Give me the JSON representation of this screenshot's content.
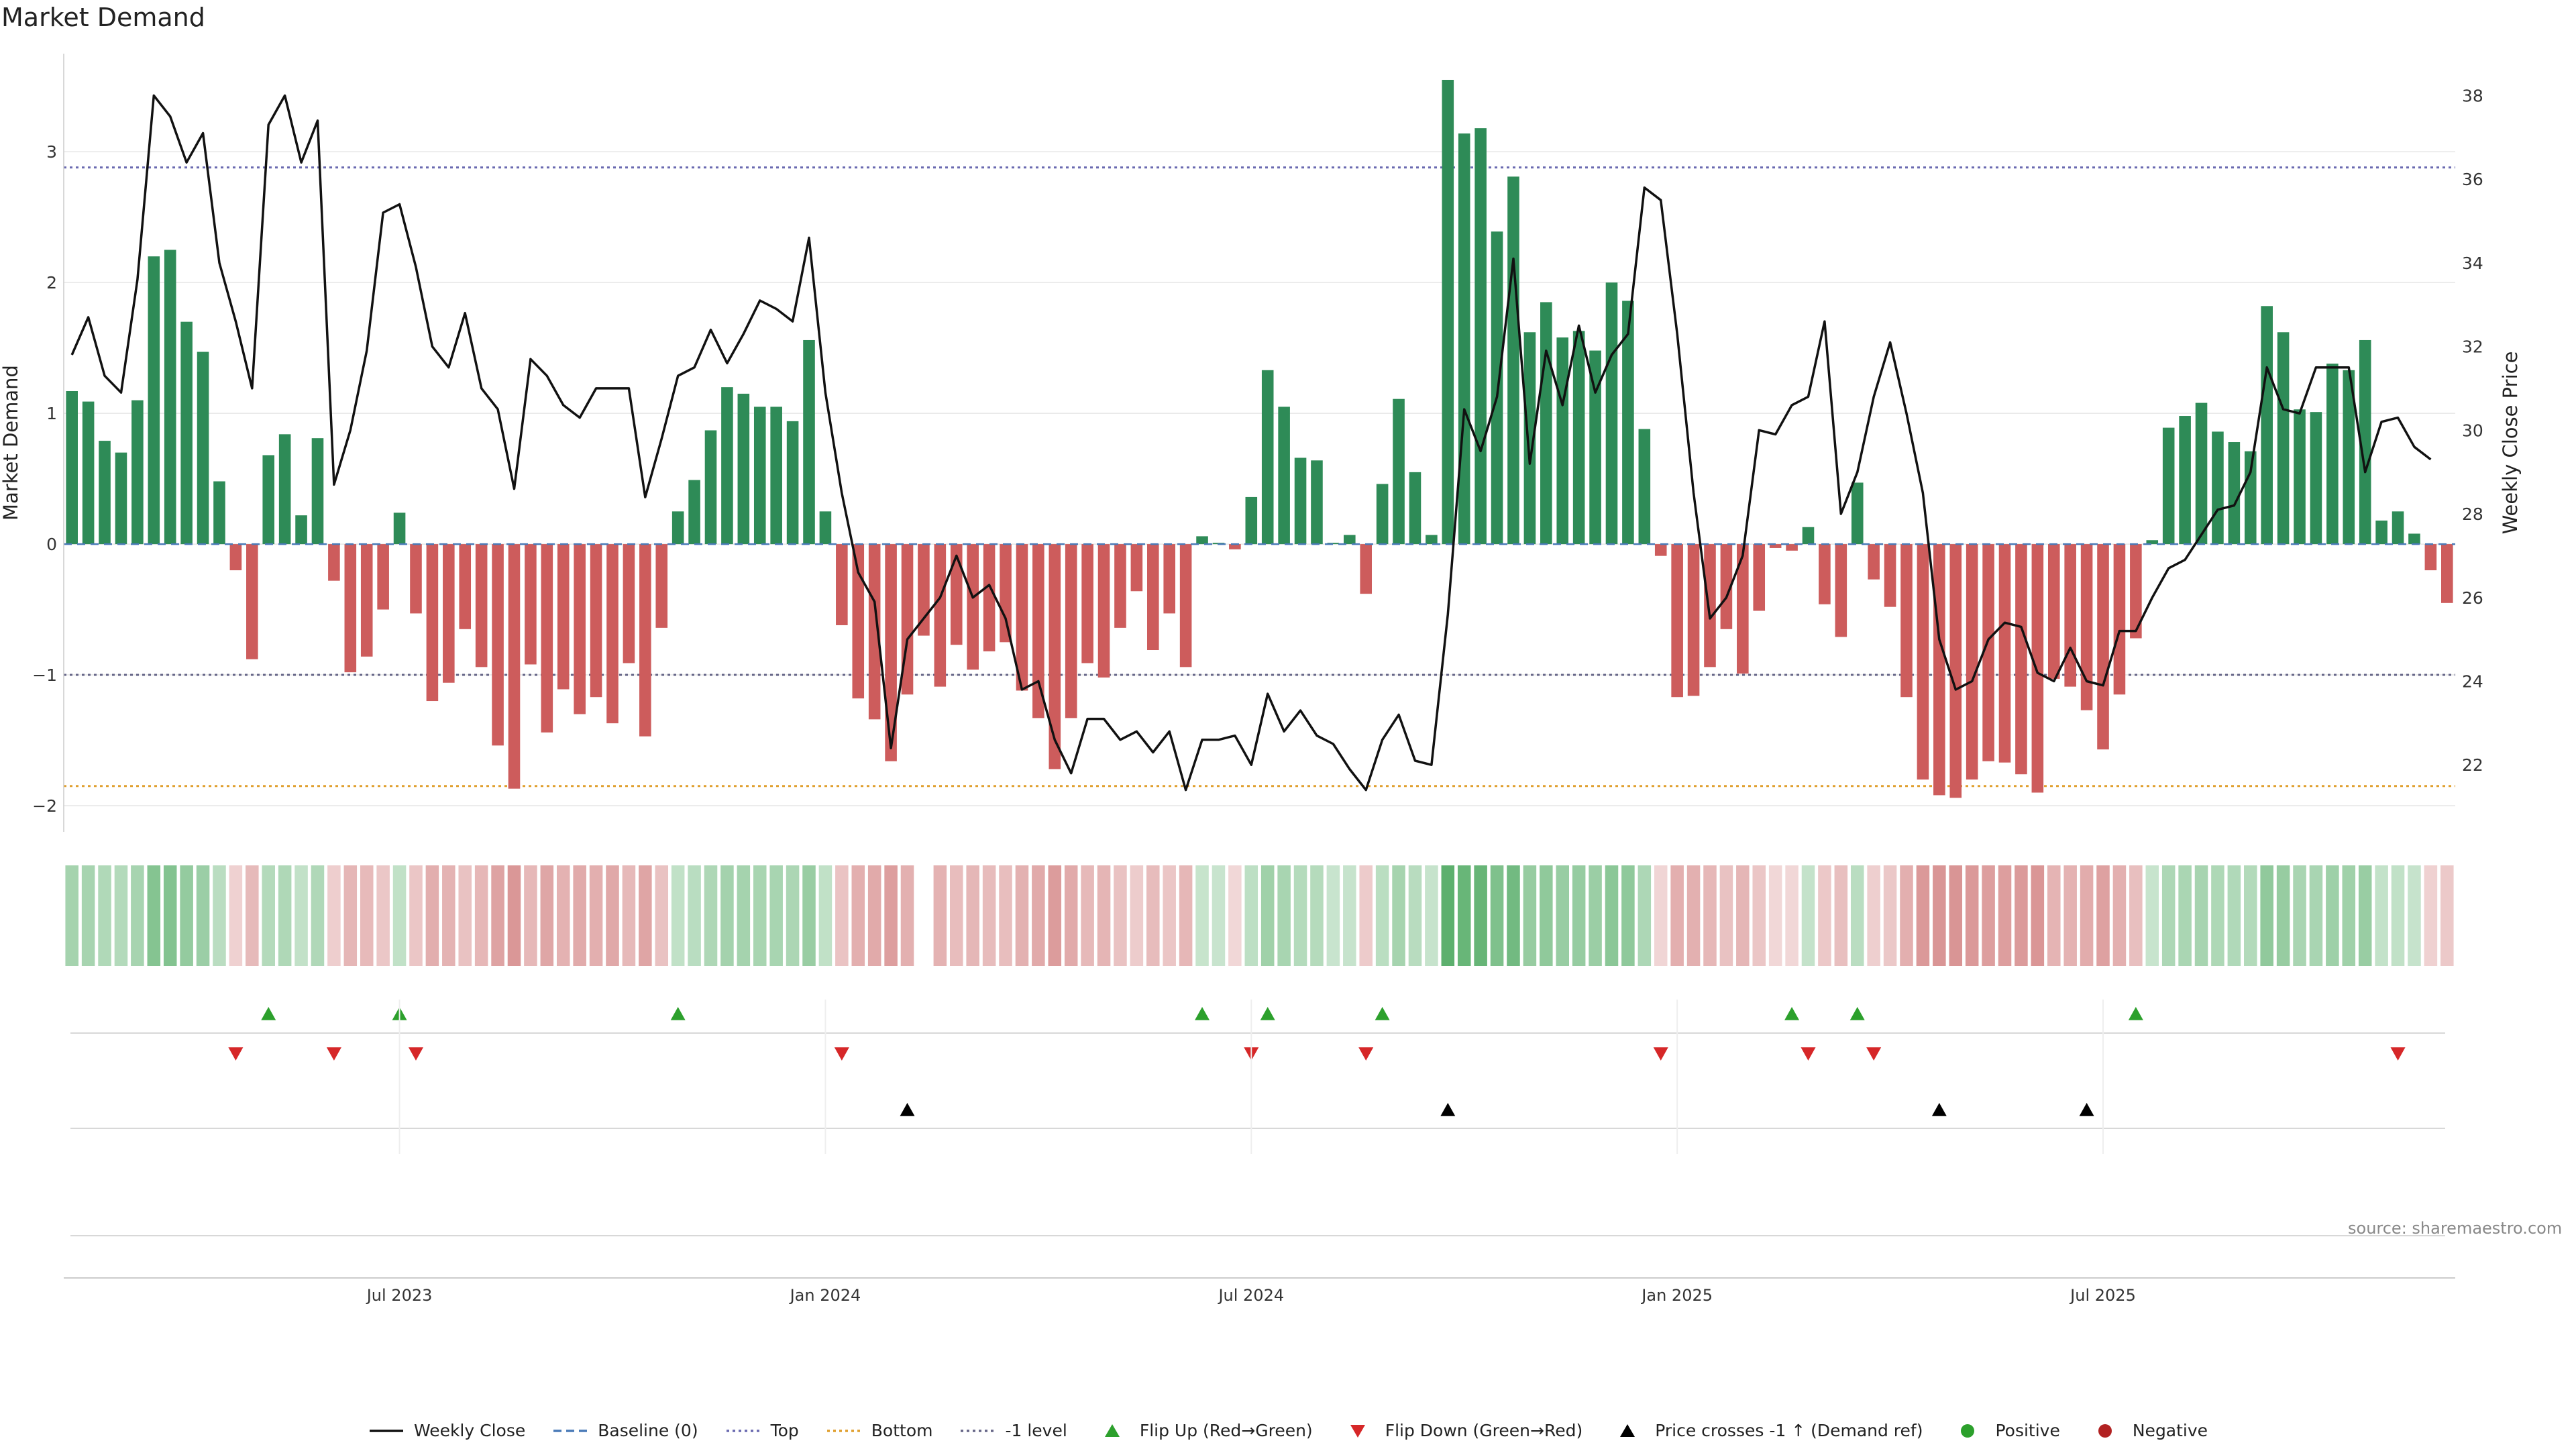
{
  "title": "Market Demand",
  "source": "source: sharemaestro.com",
  "colors": {
    "positive": "#2e8b57",
    "negative": "#cd5c5c",
    "price": "#111111",
    "top": "#6a6ab0",
    "bottom": "#e0a030",
    "minus_one": "#666688",
    "flip_up": "#2ca02c",
    "flip_down": "#d62728",
    "cross": "#000000",
    "dot_positive": "#2ca02c",
    "dot_negative": "#b22222"
  },
  "legend": [
    {
      "label": "Weekly Close",
      "kind": "line-solid",
      "color": "#111111"
    },
    {
      "label": "Baseline (0)",
      "kind": "line-dash",
      "color": "#4a7ab8"
    },
    {
      "label": "Top",
      "kind": "line-dot",
      "color": "#6a6ab0"
    },
    {
      "label": "Bottom",
      "kind": "line-dot",
      "color": "#e0a030"
    },
    {
      "label": "-1 level",
      "kind": "line-dot",
      "color": "#666688"
    },
    {
      "label": "Flip Up (Red→Green)",
      "kind": "tri-up",
      "color": "#2ca02c"
    },
    {
      "label": "Flip Down (Green→Red)",
      "kind": "tri-down",
      "color": "#d62728"
    },
    {
      "label": "Price crosses -1 ↑ (Demand ref)",
      "kind": "tri-up",
      "color": "#000000"
    },
    {
      "label": "Positive",
      "kind": "dot",
      "color": "#2ca02c"
    },
    {
      "label": "Negative",
      "kind": "dot",
      "color": "#b22222"
    }
  ],
  "chart_data": {
    "type": "bar",
    "title": "Market Demand",
    "ylabel_left": "Market Demand",
    "ylabel_right": "Weekly Close Price",
    "ylim_left": [
      -2.2,
      3.75
    ],
    "ylim_right": [
      20.4,
      39
    ],
    "yticks_left": [
      -2,
      -1,
      0,
      1,
      2,
      3
    ],
    "yticks_left_labels": [
      "−2",
      "−1",
      "0",
      "1",
      "2",
      "3"
    ],
    "yticks_right": [
      22,
      24,
      26,
      28,
      30,
      32,
      34,
      36,
      38
    ],
    "xticks": [
      {
        "label": "Jul 2023",
        "index": 20
      },
      {
        "label": "Jan 2024",
        "index": 46
      },
      {
        "label": "Jul 2024",
        "index": 72
      },
      {
        "label": "Jan 2025",
        "index": 98
      },
      {
        "label": "Jul 2025",
        "index": 124
      }
    ],
    "levels": {
      "top": 2.88,
      "bottom": -1.85,
      "minus_one": -1.0,
      "baseline": 0
    },
    "demand": [
      1.17,
      1.09,
      0.79,
      0.7,
      1.1,
      2.2,
      2.25,
      1.7,
      1.47,
      0.48,
      -0.2,
      -0.88,
      0.68,
      0.84,
      0.22,
      0.81,
      -0.28,
      -0.98,
      -0.86,
      -0.5,
      0.24,
      -0.53,
      -1.2,
      -1.06,
      -0.65,
      -0.94,
      -1.54,
      -1.87,
      -0.92,
      -1.44,
      -1.11,
      -1.3,
      -1.17,
      -1.37,
      -0.91,
      -1.47,
      -0.64,
      0.25,
      0.49,
      0.87,
      1.2,
      1.15,
      1.05,
      1.05,
      0.94,
      1.56,
      0.25,
      -0.62,
      -1.18,
      -1.34,
      -1.66,
      -1.15,
      -0.7,
      -1.09,
      -0.77,
      -0.96,
      -0.82,
      -0.75,
      -1.12,
      -1.33,
      -1.72,
      -1.33,
      -0.91,
      -1.02,
      -0.64,
      -0.36,
      -0.81,
      -0.53,
      -0.94,
      0.06,
      0.01,
      -0.04,
      0.36,
      1.33,
      1.05,
      0.66,
      0.64,
      0.01,
      0.07,
      -0.38,
      0.46,
      1.11,
      0.55,
      0.07,
      3.55,
      3.14,
      3.18,
      2.39,
      2.81,
      1.62,
      1.85,
      1.58,
      1.63,
      1.48,
      2.0,
      1.86,
      0.88,
      -0.09,
      -1.17,
      -1.16,
      -0.94,
      -0.65,
      -0.99,
      -0.51,
      -0.03,
      -0.05,
      0.13,
      -0.46,
      -0.71,
      0.47,
      -0.27,
      -0.48,
      -1.17,
      -1.8,
      -1.92,
      -1.94,
      -1.8,
      -1.66,
      -1.67,
      -1.76,
      -1.9,
      -1.03,
      -1.09,
      -1.27,
      -1.57,
      -1.15,
      -0.72,
      0.03,
      0.89,
      0.98,
      1.08,
      0.86,
      0.78,
      0.71,
      1.82,
      1.62,
      1.03,
      1.01,
      1.38,
      1.33,
      1.56,
      0.18,
      0.25,
      0.08,
      -0.2,
      -0.45
    ],
    "price": [
      31.8,
      32.7,
      31.3,
      30.9,
      33.6,
      38.0,
      37.5,
      36.4,
      37.1,
      34.0,
      32.6,
      31.0,
      37.3,
      38.0,
      36.4,
      37.4,
      28.7,
      30.0,
      31.9,
      35.2,
      35.4,
      33.9,
      32.0,
      31.5,
      32.8,
      31.0,
      30.5,
      28.6,
      31.7,
      31.3,
      30.6,
      30.3,
      31.0,
      31.0,
      31.0,
      28.4,
      29.8,
      31.3,
      31.5,
      32.4,
      31.6,
      32.3,
      33.1,
      32.9,
      32.6,
      34.6,
      30.9,
      28.5,
      26.6,
      25.9,
      22.4,
      25.0,
      25.5,
      26.0,
      27.0,
      26.0,
      26.3,
      25.5,
      23.8,
      24.0,
      22.6,
      21.8,
      23.1,
      23.1,
      22.6,
      22.8,
      22.3,
      22.8,
      21.4,
      22.6,
      22.6,
      22.7,
      22.0,
      23.7,
      22.8,
      23.3,
      22.7,
      22.5,
      21.9,
      21.4,
      22.6,
      23.2,
      22.1,
      22.0,
      25.6,
      30.5,
      29.5,
      30.8,
      34.1,
      29.2,
      31.9,
      30.6,
      32.5,
      30.9,
      31.8,
      32.3,
      35.8,
      35.5,
      32.3,
      28.5,
      25.5,
      26.0,
      27.0,
      30.0,
      29.9,
      30.6,
      30.8,
      32.6,
      28.0,
      29.0,
      30.8,
      32.1,
      30.4,
      28.5,
      25.0,
      23.8,
      24.0,
      25.0,
      25.4,
      25.3,
      24.2,
      24.0,
      24.8,
      24.0,
      23.9,
      25.2,
      25.2,
      26.0,
      26.7,
      26.9,
      27.5,
      28.1,
      28.2,
      29.0,
      31.5,
      30.5,
      30.4,
      31.5,
      31.5,
      31.5,
      29.0,
      30.2,
      30.3,
      29.6,
      29.3
    ],
    "flip_up": [
      12,
      20,
      37,
      69,
      73,
      80,
      105,
      109,
      126
    ],
    "flip_down": [
      10,
      16,
      21,
      47,
      72,
      79,
      97,
      106,
      110,
      142
    ],
    "price_cross_up": [
      51,
      84,
      114,
      123
    ]
  }
}
